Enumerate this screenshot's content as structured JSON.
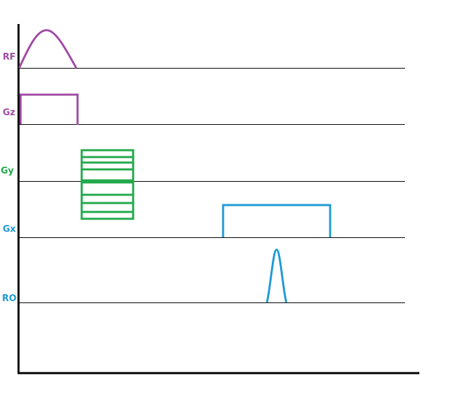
{
  "rows": {
    "rf": {
      "label": "RF",
      "color": "#a04aa5"
    },
    "gz": {
      "label": "Gz",
      "color": "#a04aa5"
    },
    "gy": {
      "label": "Gy",
      "color": "#22a94a"
    },
    "gx": {
      "label": "Gx",
      "color": "#1e9ad6"
    },
    "ro": {
      "label": "RO",
      "color": "#1e9ad6"
    }
  },
  "axis_color": "#000000",
  "baseline_color": "#000000"
}
